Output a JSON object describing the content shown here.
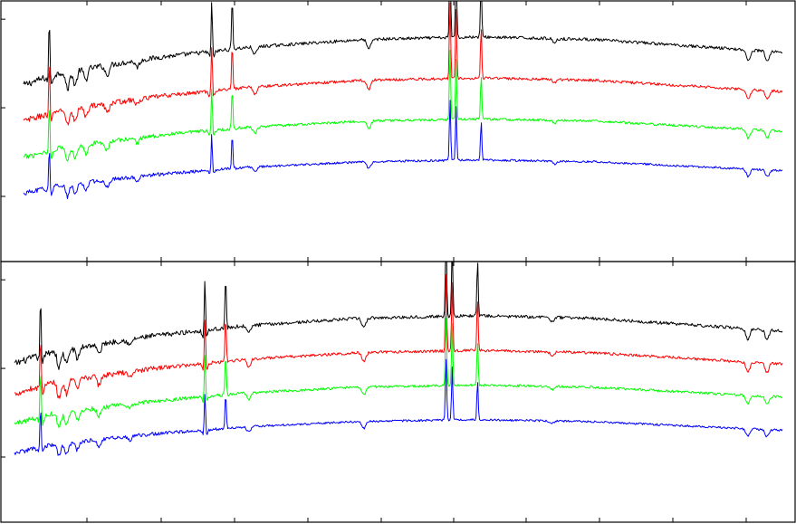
{
  "chart_data": [
    {
      "type": "line",
      "panel": "top",
      "title": "",
      "xlabel": "",
      "ylabel": "",
      "grid": false,
      "legend": "none",
      "x_range": [
        0,
        1
      ],
      "y_range": [
        0,
        1
      ],
      "series": [
        {
          "color": "#000000",
          "offset": 0.0
        },
        {
          "color": "#ff0000",
          "offset": 0.25
        },
        {
          "color": "#00ff00",
          "offset": 0.5
        },
        {
          "color": "#0000ff",
          "offset": 0.75
        }
      ]
    },
    {
      "type": "line",
      "panel": "bottom",
      "title": "",
      "xlabel": "",
      "ylabel": "",
      "grid": false,
      "legend": "none",
      "x_range": [
        0,
        1
      ],
      "y_range": [
        0,
        1
      ],
      "series": [
        {
          "color": "#000000",
          "offset": 0.0
        },
        {
          "color": "#ff0000",
          "offset": 0.25
        },
        {
          "color": "#00ff00",
          "offset": 0.5
        },
        {
          "color": "#0000ff",
          "offset": 0.75
        }
      ]
    }
  ],
  "spectral_features": {
    "continuum_shape": [
      [
        0.0,
        0.0
      ],
      [
        0.05,
        0.1
      ],
      [
        0.18,
        0.22
      ],
      [
        0.3,
        0.3
      ],
      [
        0.45,
        0.36
      ],
      [
        0.6,
        0.38
      ],
      [
        0.75,
        0.36
      ],
      [
        0.9,
        0.3
      ],
      [
        1.0,
        0.26
      ]
    ],
    "absorption_lines": [
      {
        "x": 0.035,
        "depth": 0.1
      },
      {
        "x": 0.058,
        "depth": 0.14
      },
      {
        "x": 0.068,
        "depth": 0.12
      },
      {
        "x": 0.082,
        "depth": 0.09
      },
      {
        "x": 0.11,
        "depth": 0.08
      },
      {
        "x": 0.15,
        "depth": 0.05
      },
      {
        "x": 0.248,
        "depth": 0.09
      },
      {
        "x": 0.305,
        "depth": 0.06
      },
      {
        "x": 0.455,
        "depth": 0.08
      },
      {
        "x": 0.7,
        "depth": 0.03
      },
      {
        "x": 0.955,
        "depth": 0.09
      },
      {
        "x": 0.98,
        "depth": 0.08
      }
    ],
    "emission_lines": [
      {
        "x": 0.034,
        "height": 0.55,
        "mask": [
          1,
          1,
          1,
          1
        ]
      },
      {
        "x": 0.248,
        "height": 0.5,
        "mask": [
          1,
          1,
          1,
          1
        ]
      },
      {
        "x": 0.275,
        "height": 0.4,
        "mask": [
          1,
          1,
          1,
          1
        ]
      },
      {
        "x": 0.562,
        "height": 0.7,
        "mask": [
          1,
          1,
          1,
          1
        ]
      },
      {
        "x": 0.57,
        "height": 0.6,
        "mask": [
          1,
          1,
          1,
          1
        ]
      },
      {
        "x": 0.603,
        "height": 0.45,
        "mask": [
          1,
          1,
          1,
          1
        ]
      }
    ]
  }
}
